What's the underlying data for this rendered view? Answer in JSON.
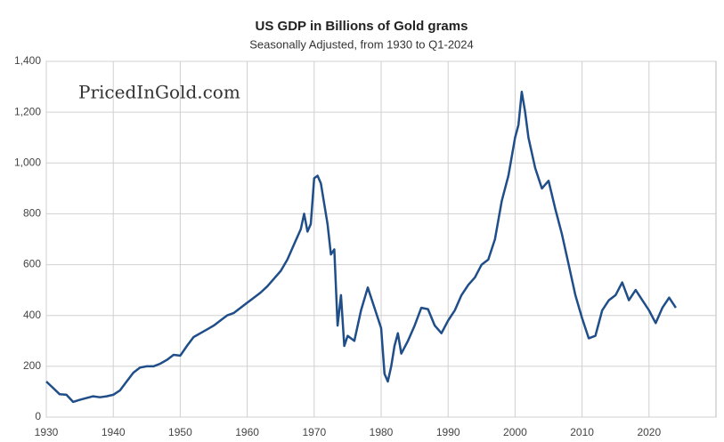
{
  "chart_data": {
    "type": "line",
    "title": "US GDP in Billions of Gold grams",
    "subtitle": "Seasonally Adjusted, from 1930 to Q1-2024",
    "annotation": "PricedInGold.com",
    "x": [
      1930,
      1931,
      1932,
      1933,
      1934,
      1935,
      1936,
      1937,
      1938,
      1939,
      1940,
      1941,
      1942,
      1943,
      1944,
      1945,
      1946,
      1947,
      1948,
      1949,
      1950,
      1951,
      1952,
      1953,
      1954,
      1955,
      1956,
      1957,
      1958,
      1959,
      1960,
      1961,
      1962,
      1963,
      1964,
      1965,
      1966,
      1967,
      1968,
      1968.5,
      1969,
      1969.5,
      1970,
      1970.5,
      1971,
      1972,
      1972.5,
      1973,
      1973.5,
      1974,
      1974.5,
      1975,
      1976,
      1977,
      1978,
      1979,
      1980,
      1980.5,
      1981,
      1981.5,
      1982,
      1982.5,
      1983,
      1984,
      1985,
      1986,
      1987,
      1988,
      1989,
      1990,
      1991,
      1992,
      1993,
      1994,
      1995,
      1996,
      1997,
      1998,
      1999,
      2000,
      2000.5,
      2001,
      2001.5,
      2002,
      2003,
      2004,
      2005,
      2006,
      2007,
      2008,
      2009,
      2010,
      2011,
      2012,
      2013,
      2014,
      2015,
      2016,
      2017,
      2018,
      2019,
      2020,
      2021,
      2022,
      2023,
      2024
    ],
    "series": [
      {
        "name": "US GDP in gold grams",
        "color": "#1f4e89",
        "values": [
          140,
          115,
          90,
          88,
          60,
          68,
          75,
          82,
          78,
          82,
          88,
          105,
          140,
          175,
          195,
          200,
          200,
          210,
          225,
          245,
          242,
          280,
          315,
          330,
          345,
          360,
          380,
          400,
          410,
          430,
          450,
          470,
          490,
          515,
          545,
          575,
          620,
          680,
          740,
          800,
          730,
          760,
          940,
          950,
          920,
          760,
          640,
          660,
          360,
          480,
          280,
          320,
          300,
          420,
          510,
          430,
          350,
          170,
          140,
          200,
          280,
          330,
          250,
          300,
          360,
          430,
          425,
          360,
          330,
          380,
          420,
          480,
          520,
          550,
          600,
          620,
          700,
          850,
          950,
          1100,
          1150,
          1280,
          1200,
          1100,
          980,
          900,
          930,
          820,
          720,
          600,
          480,
          390,
          310,
          320,
          420,
          460,
          480,
          530,
          460,
          500,
          460,
          420,
          370,
          430,
          470,
          430
        ]
      }
    ],
    "xlim": [
      1930,
      2030
    ],
    "xticks": [
      1930,
      1940,
      1950,
      1960,
      1970,
      1980,
      1990,
      2000,
      2010,
      2020
    ],
    "ylim": [
      0,
      1400
    ],
    "yticks": [
      0,
      200,
      400,
      600,
      800,
      {
        "value": 1000,
        "label": "1,000"
      },
      {
        "value": 1200,
        "label": "1,200"
      },
      {
        "value": 1400,
        "label": "1,400"
      }
    ],
    "grid": true
  }
}
